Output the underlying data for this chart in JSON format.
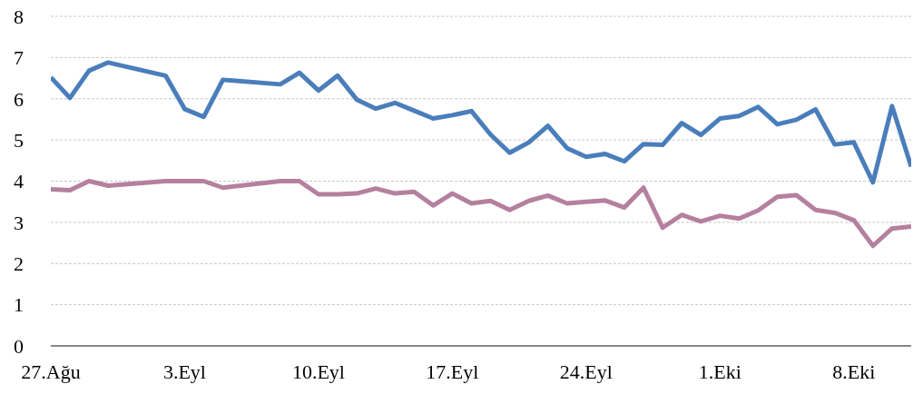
{
  "chart_data": {
    "type": "line",
    "x": [
      "--08-27",
      "--08-28",
      "--08-29",
      "--08-30",
      "--09-02",
      "--09-03",
      "--09-04",
      "--09-05",
      "--09-08",
      "--09-09",
      "--09-10",
      "--09-11",
      "--09-12",
      "--09-13",
      "--09-14",
      "--09-15",
      "--09-16",
      "--09-17",
      "--09-18",
      "--09-19",
      "--09-20",
      "--09-21",
      "--09-22",
      "--09-23",
      "--09-24",
      "--09-25",
      "--09-26",
      "--09-27",
      "--09-28",
      "--09-29",
      "--09-30",
      "--10-01",
      "--10-02",
      "--10-03",
      "--10-04",
      "--10-05",
      "--10-06",
      "--10-07",
      "--10-08",
      "--10-09",
      "--10-10",
      "--10-11"
    ],
    "series": [
      {
        "color": "#4a7ebb",
        "values": [
          6.52,
          6.02,
          6.68,
          6.88,
          6.56,
          5.75,
          5.56,
          6.46,
          6.35,
          6.63,
          6.2,
          6.56,
          5.98,
          5.76,
          5.9,
          5.71,
          5.52,
          5.6,
          5.7,
          5.13,
          4.69,
          4.94,
          5.34,
          4.8,
          4.59,
          4.66,
          4.48,
          4.9,
          4.88,
          5.41,
          5.12,
          5.52,
          5.58,
          5.8,
          5.38,
          5.49,
          5.74,
          4.89,
          4.94,
          3.97,
          5.82,
          4.35
        ]
      },
      {
        "color": "#b5809f",
        "values": [
          3.8,
          3.78,
          4.0,
          3.89,
          4.0,
          4.0,
          4.0,
          3.84,
          4.0,
          4.0,
          3.68,
          3.68,
          3.7,
          3.82,
          3.7,
          3.74,
          3.41,
          3.7,
          3.46,
          3.52,
          3.3,
          3.52,
          3.65,
          3.46,
          3.5,
          3.53,
          3.36,
          3.84,
          2.87,
          3.18,
          3.02,
          3.16,
          3.09,
          3.29,
          3.62,
          3.66,
          3.3,
          3.23,
          3.05,
          2.43,
          2.85,
          2.9
        ]
      }
    ],
    "xlim": [
      "--08-27",
      "--10-11"
    ],
    "xticks": [
      {
        "value": "--08-27",
        "label": "27.Ağu"
      },
      {
        "value": "--09-03",
        "label": "3.Eyl"
      },
      {
        "value": "--09-10",
        "label": "10.Eyl"
      },
      {
        "value": "--09-17",
        "label": "17.Eyl"
      },
      {
        "value": "--09-24",
        "label": "24.Eyl"
      },
      {
        "value": "--10-01",
        "label": "1.Eki"
      },
      {
        "value": "--10-08",
        "label": "8.Eki"
      }
    ],
    "ylim": [
      0,
      8
    ],
    "yticks": [
      0,
      1,
      2,
      3,
      4,
      5,
      6,
      7,
      8
    ],
    "grid": "y",
    "legend": false,
    "marker": "none",
    "line_style": "solid"
  }
}
